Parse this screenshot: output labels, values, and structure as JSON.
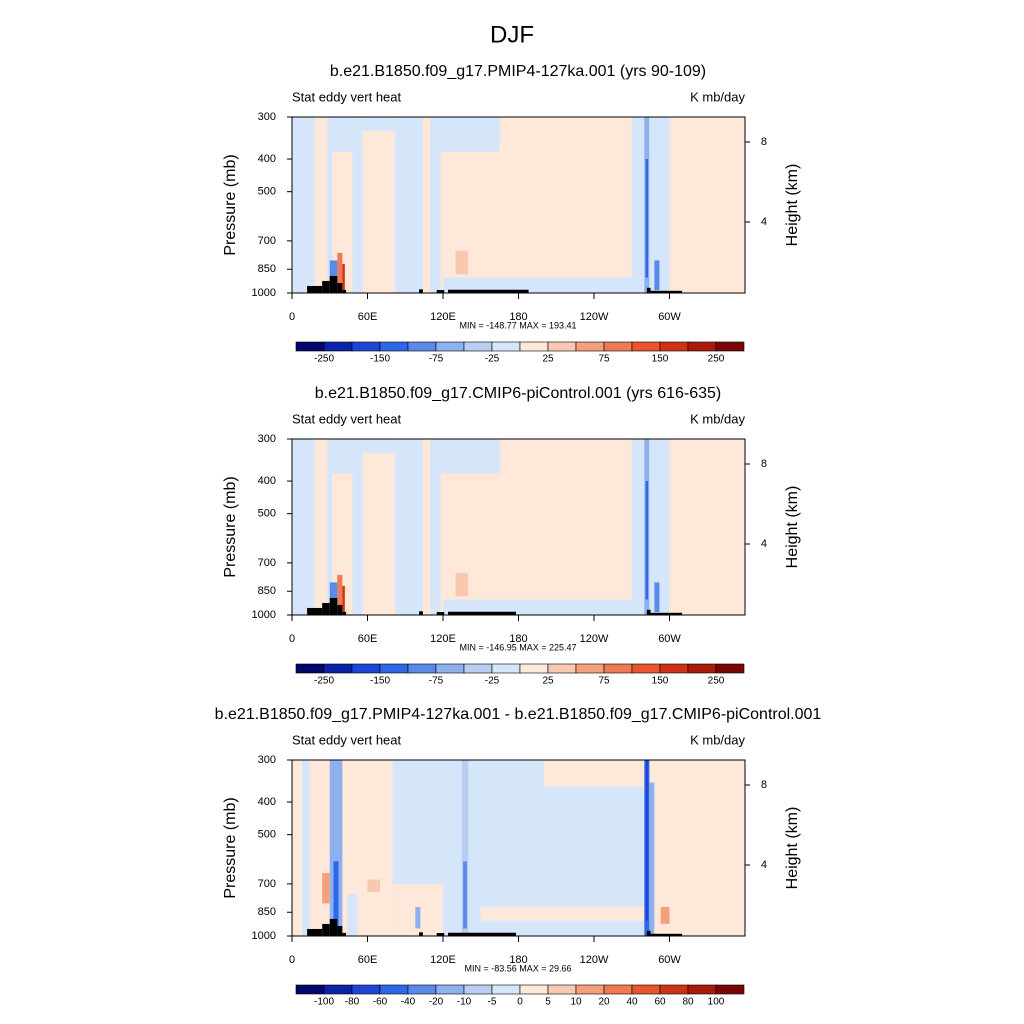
{
  "title": "DJF",
  "chart_data": [
    {
      "type": "contour",
      "title": "b.e21.B1850.f09_g17.PMIP4-127ka.001 (yrs 90-109)",
      "left_string": "Stat eddy vert heat",
      "right_string": "K mb/day",
      "ylabel": "Pressure (mb)",
      "y2label": "Height (km)",
      "xlim": [
        0,
        360
      ],
      "xticks": [
        0,
        {
          "value": 60,
          "label": "60E"
        },
        {
          "value": 120,
          "label": "120E"
        },
        180,
        {
          "value": 240,
          "label": "120W"
        },
        {
          "value": 300,
          "label": "60W"
        }
      ],
      "ylim": [
        1000,
        300
      ],
      "yscale": "log",
      "yticks": [
        300,
        400,
        500,
        700,
        850,
        1000
      ],
      "y2lim": [
        0.45,
        9.25
      ],
      "y2ticks": [
        4,
        8
      ],
      "stats": "MIN = -148.77  MAX = 193.41",
      "colorbar": {
        "labels": [
          -250,
          -150,
          -75,
          -25,
          25,
          75,
          150,
          250
        ],
        "colors": [
          "#05056e",
          "#0a24a8",
          "#1f45d6",
          "#2f68e6",
          "#5a8ae8",
          "#8fb0ee",
          "#b7cdf2",
          "#d6e6fa",
          "#fde8da",
          "#f9c8b0",
          "#f4a07d",
          "#ee7a55",
          "#e8552e",
          "#cf3315",
          "#a81a0a",
          "#7a0505"
        ]
      }
    },
    {
      "type": "contour",
      "title": "b.e21.B1850.f09_g17.CMIP6-piControl.001 (yrs 616-635)",
      "left_string": "Stat eddy vert heat",
      "right_string": "K mb/day",
      "ylabel": "Pressure (mb)",
      "y2label": "Height (km)",
      "xlim": [
        0,
        360
      ],
      "xticks": [
        0,
        {
          "value": 60,
          "label": "60E"
        },
        {
          "value": 120,
          "label": "120E"
        },
        180,
        {
          "value": 240,
          "label": "120W"
        },
        {
          "value": 300,
          "label": "60W"
        }
      ],
      "ylim": [
        1000,
        300
      ],
      "yscale": "log",
      "yticks": [
        300,
        400,
        500,
        700,
        850,
        1000
      ],
      "y2lim": [
        0.45,
        9.25
      ],
      "y2ticks": [
        4,
        8
      ],
      "stats": "MIN = -146.95  MAX = 225.47",
      "colorbar": {
        "labels": [
          -250,
          -150,
          -75,
          -25,
          25,
          75,
          150,
          250
        ],
        "colors": [
          "#05056e",
          "#0a24a8",
          "#1f45d6",
          "#2f68e6",
          "#5a8ae8",
          "#8fb0ee",
          "#b7cdf2",
          "#d6e6fa",
          "#fde8da",
          "#f9c8b0",
          "#f4a07d",
          "#ee7a55",
          "#e8552e",
          "#cf3315",
          "#a81a0a",
          "#7a0505"
        ]
      }
    },
    {
      "type": "contour",
      "title": "b.e21.B1850.f09_g17.PMIP4-127ka.001 - b.e21.B1850.f09_g17.CMIP6-piControl.001",
      "left_string": "Stat eddy vert heat",
      "right_string": "K mb/day",
      "ylabel": "Pressure (mb)",
      "y2label": "Height (km)",
      "xlim": [
        0,
        360
      ],
      "xticks": [
        0,
        {
          "value": 60,
          "label": "60E"
        },
        {
          "value": 120,
          "label": "120E"
        },
        180,
        {
          "value": 240,
          "label": "120W"
        },
        {
          "value": 300,
          "label": "60W"
        }
      ],
      "ylim": [
        1000,
        300
      ],
      "yscale": "log",
      "yticks": [
        300,
        400,
        500,
        700,
        850,
        1000
      ],
      "y2lim": [
        0.45,
        9.25
      ],
      "y2ticks": [
        4,
        8
      ],
      "stats": "MIN = -83.56  MAX =  29.66",
      "colorbar": {
        "labels": [
          -100,
          -80,
          -60,
          -40,
          -20,
          -10,
          -5,
          0,
          5,
          10,
          20,
          40,
          60,
          80,
          100
        ],
        "colors": [
          "#05056e",
          "#0a24a8",
          "#1f45d6",
          "#2f68e6",
          "#5a8ae8",
          "#8fb0ee",
          "#b7cdf2",
          "#d6e6fa",
          "#fde8da",
          "#f9c8b0",
          "#f4a07d",
          "#ee7a55",
          "#e8552e",
          "#cf3315",
          "#a81a0a",
          "#7a0505"
        ]
      }
    }
  ]
}
